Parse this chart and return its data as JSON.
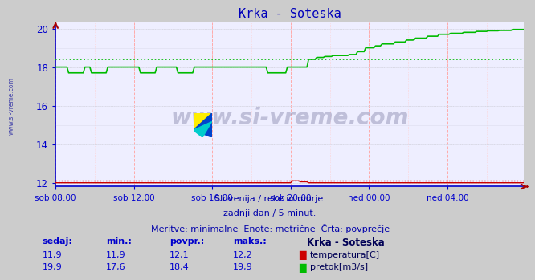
{
  "title": "Krka - Soteska",
  "title_color": "#0000bb",
  "bg_color": "#cccccc",
  "plot_bg_color": "#eeeeff",
  "ylim": [
    11.8,
    20.3
  ],
  "yticks": [
    12,
    14,
    16,
    18,
    20
  ],
  "xtick_labels": [
    "sob 08:00",
    "sob 12:00",
    "sob 16:00",
    "sob 20:00",
    "ned 00:00",
    "ned 04:00"
  ],
  "temp_color": "#cc0000",
  "flow_color": "#00bb00",
  "temp_avg": 12.1,
  "flow_avg": 18.4,
  "watermark": "www.si-vreme.com",
  "footer_line1": "Slovenija / reke in morje.",
  "footer_line2": "zadnji dan / 5 minut.",
  "footer_line3": "Meritve: minimalne  Enote: metrične  Črta: povprečje",
  "legend_title": "Krka - Soteska",
  "legend_temp": "temperatura[C]",
  "legend_flow": "pretok[m3/s]",
  "stats_headers": [
    "sedaj:",
    "min.:",
    "povpr.:",
    "maks.:"
  ],
  "temp_stats": [
    "11,9",
    "11,9",
    "12,1",
    "12,2"
  ],
  "flow_stats": [
    "19,9",
    "17,6",
    "18,4",
    "19,9"
  ],
  "axis_color": "#0000cc",
  "ylabel_color": "#0000cc",
  "xlabel_color": "#0000cc",
  "footer_color": "#0000aa",
  "stats_color": "#0000cc"
}
